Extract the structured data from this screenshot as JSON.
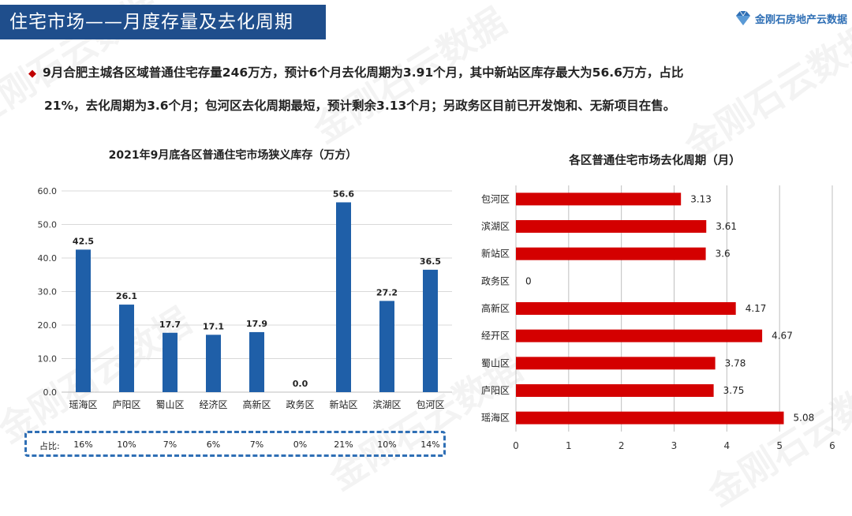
{
  "header": {
    "title": "住宅市场——月度存量及去化周期",
    "logo_text": "金刚石房地产云数据",
    "logo_icon": "diamond-logo-icon"
  },
  "summary": {
    "line1": "9月合肥主城各区域普通住宅存量246万方，预计6个月去化周期为3.91个月，其中新站区库存最大为56.6万方，占比",
    "line2": "21%，去化周期为3.6个月；包河区去化周期最短，预计剩余3.13个月；另政务区目前已开发饱和、无新项目在售。"
  },
  "watermark_text": "金刚石云数据",
  "chart_data": [
    {
      "type": "bar",
      "title": "2021年9月底各区普通住宅市场狭义库存（万方）",
      "categories": [
        "瑶海区",
        "庐阳区",
        "蜀山区",
        "经济区",
        "高新区",
        "政务区",
        "新站区",
        "滨湖区",
        "包河区"
      ],
      "values": [
        42.5,
        26.1,
        17.7,
        17.1,
        17.9,
        0.0,
        56.6,
        27.2,
        36.5
      ],
      "value_labels": [
        "42.5",
        "26.1",
        "17.7",
        "17.1",
        "17.9",
        "0.0",
        "56.6",
        "27.2",
        "36.5"
      ],
      "ylim": [
        0,
        60
      ],
      "yticks": [
        "0.0",
        "10.0",
        "20.0",
        "30.0",
        "40.0",
        "50.0",
        "60.0"
      ],
      "grid": true,
      "bar_color": "#1f5fa8",
      "share_label": "占比:",
      "shares": [
        "16%",
        "10%",
        "7%",
        "6%",
        "7%",
        "0%",
        "21%",
        "10%",
        "14%"
      ]
    },
    {
      "type": "bar",
      "orientation": "horizontal",
      "title": "各区普通住宅市场去化周期（月）",
      "categories": [
        "包河区",
        "滨湖区",
        "新站区",
        "政务区",
        "高新区",
        "经开区",
        "蜀山区",
        "庐阳区",
        "瑶海区"
      ],
      "values": [
        3.13,
        3.61,
        3.6,
        0,
        4.17,
        4.67,
        3.78,
        3.75,
        5.08
      ],
      "value_labels": [
        "3.13",
        "3.61",
        "3.6",
        "0",
        "4.17",
        "4.67",
        "3.78",
        "3.75",
        "5.08"
      ],
      "xlim": [
        0,
        6
      ],
      "xticks": [
        "0",
        "1",
        "2",
        "3",
        "4",
        "5",
        "6"
      ],
      "grid": true,
      "bar_color": "#d40000"
    }
  ]
}
